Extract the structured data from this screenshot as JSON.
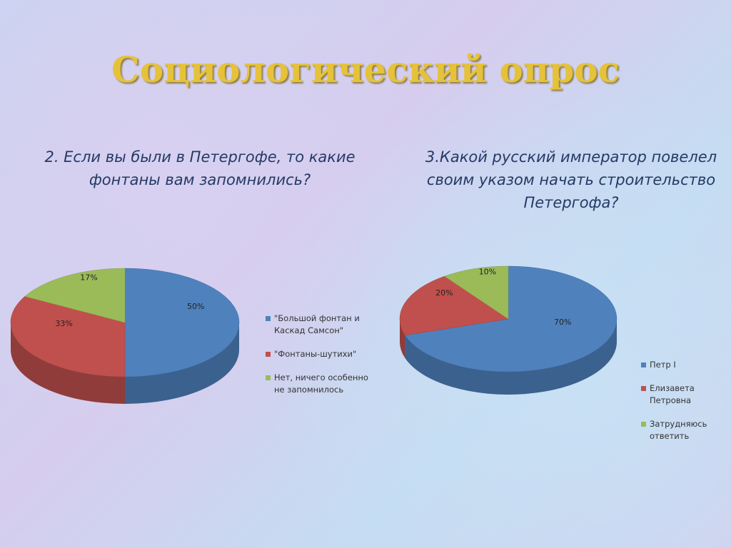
{
  "title": "Социологический опрос",
  "chart_data": [
    {
      "type": "pie3d",
      "title": "2. Если вы были в Петергофе, то какие фонтаны вам запомнились?",
      "categories": [
        "\"Большой фонтан и Каскад Самсон\"",
        "\"Фонтаны-шутихи\"",
        "Нет, ничего особенно не запомнилось"
      ],
      "values": [
        50,
        33,
        17
      ],
      "value_labels": [
        "50%",
        "33%",
        "17%"
      ],
      "colors": [
        "#4f81bd",
        "#c0504d",
        "#9bbb59"
      ]
    },
    {
      "type": "pie3d",
      "title": "3.Какой русский император повелел своим указом начать строительство Петергофа?",
      "categories": [
        "Петр I",
        "Елизавета Петровна",
        "Затрудняюсь ответить"
      ],
      "values": [
        70,
        20,
        10
      ],
      "value_labels": [
        "70%",
        "20%",
        "10%"
      ],
      "colors": [
        "#4f81bd",
        "#c0504d",
        "#9bbb59"
      ]
    }
  ]
}
